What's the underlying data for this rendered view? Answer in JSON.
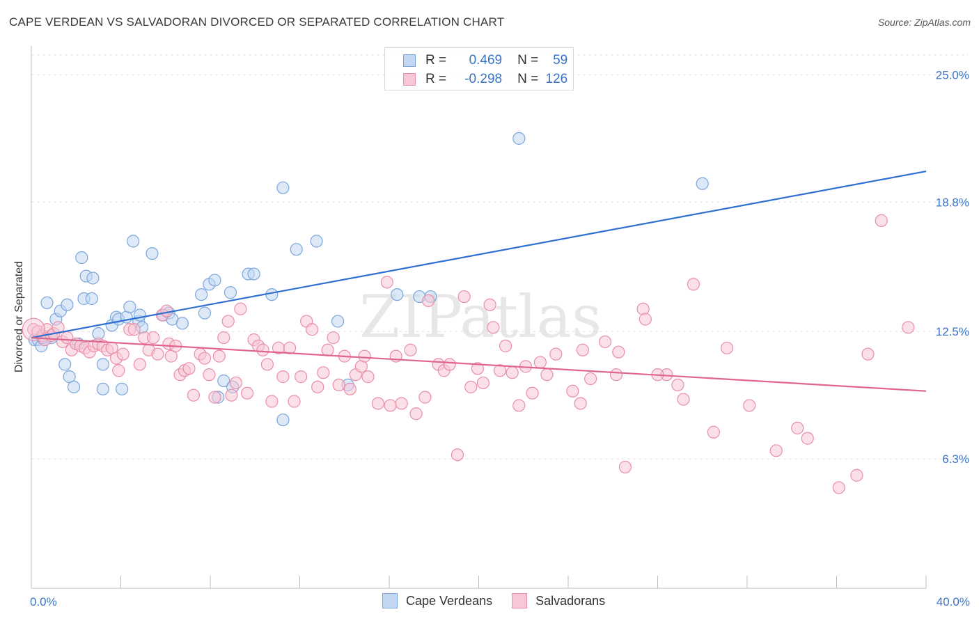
{
  "header": {
    "title": "CAPE VERDEAN VS SALVADORAN DIVORCED OR SEPARATED CORRELATION CHART",
    "source": "Source: ZipAtlas.com"
  },
  "colors": {
    "blue_fill": "#c3d7f3",
    "blue_stroke": "#7aa6dd",
    "blue_line": "#2e6fd0",
    "pink_fill": "#f8c6d5",
    "pink_stroke": "#e88ea9",
    "pink_line": "#e0648f",
    "grid": "#e0e0e0",
    "tick_text": "#3a73c4"
  },
  "legend": {
    "rows": [
      {
        "r_label": "R =",
        "r_value": "0.469",
        "n_label": "N =",
        "n_value": "59"
      },
      {
        "r_label": "R =",
        "r_value": "-0.298",
        "n_label": "N =",
        "n_value": "126"
      }
    ]
  },
  "bottom_legend": {
    "items": [
      {
        "label": "Cape Verdeans"
      },
      {
        "label": "Salvadorans"
      }
    ]
  },
  "chart_data": {
    "type": "scatter",
    "title": "CAPE VERDEAN VS SALVADORAN DIVORCED OR SEPARATED CORRELATION CHART",
    "xlabel": "",
    "ylabel": "Divorced or Separated",
    "xlim": [
      0,
      40
    ],
    "ylim": [
      0,
      26.2
    ],
    "x_tick_labels": [
      "0.0%",
      "40.0%"
    ],
    "y_ticks": [
      6.3,
      12.5,
      18.8,
      25.0
    ],
    "y_tick_labels": [
      "6.3%",
      "12.5%",
      "18.8%",
      "25.0%"
    ],
    "watermark": "ZIPatlas",
    "series": [
      {
        "name": "Cape Verdeans",
        "r": 0.469,
        "n": 59,
        "trend": {
          "x": [
            0,
            40
          ],
          "y": [
            12.2,
            20.3
          ]
        },
        "points": [
          [
            0.15,
            12.1
          ],
          [
            0.3,
            12.1
          ],
          [
            0.45,
            11.8
          ],
          [
            0.6,
            12.1
          ],
          [
            0.7,
            13.9
          ],
          [
            0.9,
            12.2
          ],
          [
            1.1,
            13.1
          ],
          [
            1.3,
            13.5
          ],
          [
            1.5,
            10.9
          ],
          [
            1.6,
            13.8
          ],
          [
            1.7,
            10.3
          ],
          [
            1.9,
            9.8
          ],
          [
            2.1,
            11.9
          ],
          [
            2.25,
            16.1
          ],
          [
            2.35,
            14.1
          ],
          [
            2.45,
            15.2
          ],
          [
            2.7,
            14.1
          ],
          [
            2.75,
            15.1
          ],
          [
            3.0,
            12.4
          ],
          [
            3.2,
            10.9
          ],
          [
            3.2,
            9.7
          ],
          [
            3.6,
            12.8
          ],
          [
            3.8,
            13.2
          ],
          [
            3.9,
            13.1
          ],
          [
            4.05,
            9.7
          ],
          [
            4.25,
            13.2
          ],
          [
            4.4,
            13.7
          ],
          [
            4.55,
            16.9
          ],
          [
            4.8,
            13.0
          ],
          [
            4.85,
            13.3
          ],
          [
            4.95,
            12.7
          ],
          [
            5.4,
            16.3
          ],
          [
            5.9,
            13.3
          ],
          [
            6.15,
            13.4
          ],
          [
            6.3,
            13.1
          ],
          [
            6.75,
            12.9
          ],
          [
            7.6,
            14.3
          ],
          [
            7.75,
            13.4
          ],
          [
            7.95,
            14.8
          ],
          [
            8.2,
            15.0
          ],
          [
            8.35,
            9.3
          ],
          [
            8.6,
            10.1
          ],
          [
            8.9,
            14.4
          ],
          [
            9.0,
            9.8
          ],
          [
            9.7,
            15.3
          ],
          [
            9.95,
            15.3
          ],
          [
            10.75,
            14.3
          ],
          [
            11.25,
            8.2
          ],
          [
            11.25,
            19.5
          ],
          [
            11.85,
            16.5
          ],
          [
            12.75,
            16.9
          ],
          [
            13.7,
            13.0
          ],
          [
            14.15,
            9.9
          ],
          [
            16.35,
            14.3
          ],
          [
            17.35,
            14.2
          ],
          [
            17.85,
            14.2
          ],
          [
            21.8,
            21.9
          ],
          [
            30.0,
            19.7
          ],
          [
            0.5,
            12.2
          ]
        ]
      },
      {
        "name": "Salvadorans",
        "r": -0.298,
        "n": 126,
        "trend": {
          "x": [
            0,
            40
          ],
          "y": [
            12.2,
            9.6
          ]
        },
        "points": [
          [
            0.1,
            12.6
          ],
          [
            0.3,
            12.5
          ],
          [
            0.5,
            12.3
          ],
          [
            0.6,
            12.1
          ],
          [
            0.7,
            12.6
          ],
          [
            0.9,
            12.3
          ],
          [
            1.0,
            12.4
          ],
          [
            1.2,
            12.7
          ],
          [
            1.4,
            12.0
          ],
          [
            1.6,
            12.2
          ],
          [
            1.8,
            11.6
          ],
          [
            2.0,
            11.9
          ],
          [
            2.2,
            11.8
          ],
          [
            2.4,
            11.7
          ],
          [
            2.6,
            11.5
          ],
          [
            2.8,
            11.8
          ],
          [
            3.0,
            11.9
          ],
          [
            3.2,
            11.8
          ],
          [
            3.4,
            11.6
          ],
          [
            3.6,
            11.7
          ],
          [
            3.8,
            11.2
          ],
          [
            3.9,
            10.6
          ],
          [
            4.1,
            11.4
          ],
          [
            4.4,
            12.6
          ],
          [
            4.6,
            12.6
          ],
          [
            4.85,
            10.9
          ],
          [
            5.05,
            12.2
          ],
          [
            5.25,
            11.6
          ],
          [
            5.45,
            12.2
          ],
          [
            5.65,
            11.4
          ],
          [
            5.85,
            13.3
          ],
          [
            6.05,
            13.5
          ],
          [
            6.15,
            11.9
          ],
          [
            6.25,
            11.3
          ],
          [
            6.45,
            11.8
          ],
          [
            6.65,
            10.4
          ],
          [
            6.85,
            10.6
          ],
          [
            7.05,
            10.7
          ],
          [
            7.25,
            9.4
          ],
          [
            7.55,
            11.4
          ],
          [
            7.75,
            11.2
          ],
          [
            7.95,
            10.4
          ],
          [
            8.2,
            9.3
          ],
          [
            8.4,
            11.3
          ],
          [
            8.6,
            12.2
          ],
          [
            8.8,
            13.0
          ],
          [
            8.95,
            9.4
          ],
          [
            9.15,
            10.0
          ],
          [
            9.35,
            13.6
          ],
          [
            9.65,
            9.5
          ],
          [
            9.95,
            12.1
          ],
          [
            10.15,
            11.8
          ],
          [
            10.35,
            11.6
          ],
          [
            10.55,
            10.9
          ],
          [
            10.75,
            9.1
          ],
          [
            11.05,
            11.7
          ],
          [
            11.25,
            10.3
          ],
          [
            11.55,
            11.7
          ],
          [
            11.75,
            9.1
          ],
          [
            12.05,
            10.3
          ],
          [
            12.3,
            13.0
          ],
          [
            12.55,
            12.6
          ],
          [
            12.8,
            9.8
          ],
          [
            13.05,
            10.5
          ],
          [
            13.25,
            11.6
          ],
          [
            13.5,
            12.2
          ],
          [
            13.75,
            9.9
          ],
          [
            14.0,
            11.3
          ],
          [
            14.25,
            9.7
          ],
          [
            14.5,
            10.4
          ],
          [
            14.75,
            10.8
          ],
          [
            14.9,
            11.3
          ],
          [
            15.05,
            10.3
          ],
          [
            15.5,
            9.0
          ],
          [
            15.9,
            14.9
          ],
          [
            16.05,
            8.9
          ],
          [
            16.3,
            11.3
          ],
          [
            16.55,
            9.0
          ],
          [
            16.95,
            11.6
          ],
          [
            17.2,
            8.5
          ],
          [
            17.6,
            9.3
          ],
          [
            17.75,
            14.0
          ],
          [
            18.2,
            10.9
          ],
          [
            18.45,
            10.6
          ],
          [
            18.7,
            10.9
          ],
          [
            19.05,
            6.5
          ],
          [
            19.35,
            14.2
          ],
          [
            19.65,
            9.8
          ],
          [
            19.95,
            10.7
          ],
          [
            20.2,
            10.0
          ],
          [
            20.5,
            13.8
          ],
          [
            20.65,
            12.7
          ],
          [
            20.95,
            10.6
          ],
          [
            21.2,
            11.8
          ],
          [
            21.5,
            10.5
          ],
          [
            21.8,
            8.9
          ],
          [
            22.1,
            10.8
          ],
          [
            22.4,
            9.5
          ],
          [
            22.75,
            11.0
          ],
          [
            23.05,
            10.4
          ],
          [
            23.45,
            11.4
          ],
          [
            24.2,
            9.6
          ],
          [
            24.55,
            9.0
          ],
          [
            24.65,
            11.6
          ],
          [
            25.0,
            10.2
          ],
          [
            25.65,
            12.0
          ],
          [
            26.25,
            11.5
          ],
          [
            26.15,
            10.4
          ],
          [
            26.55,
            5.9
          ],
          [
            27.35,
            13.6
          ],
          [
            27.45,
            13.1
          ],
          [
            28.4,
            10.4
          ],
          [
            28.9,
            9.9
          ],
          [
            29.15,
            9.2
          ],
          [
            29.6,
            14.8
          ],
          [
            30.5,
            7.6
          ],
          [
            31.1,
            11.7
          ],
          [
            32.1,
            8.9
          ],
          [
            33.3,
            6.7
          ],
          [
            34.25,
            7.8
          ],
          [
            34.7,
            7.3
          ],
          [
            36.1,
            4.9
          ],
          [
            36.9,
            5.5
          ],
          [
            37.4,
            11.4
          ],
          [
            38.0,
            17.9
          ],
          [
            39.2,
            12.7
          ],
          [
            28.0,
            10.4
          ]
        ]
      }
    ]
  }
}
